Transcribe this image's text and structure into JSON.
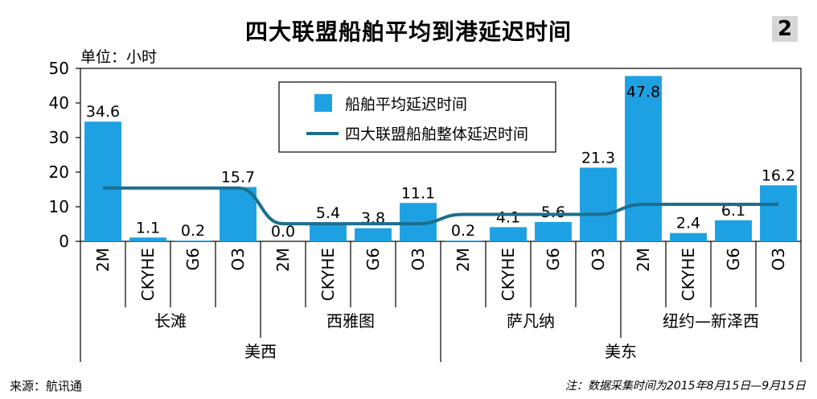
{
  "header": {
    "title": "四大联盟船舶平均到港延迟时间",
    "badge": "2",
    "unit": "单位：小时"
  },
  "footer": {
    "source": "来源：航讯通",
    "note": "注：数据采集时间为2015年8月15日—9月15日"
  },
  "colors": {
    "bar": "#1ea1e3",
    "line": "#1b6e8e",
    "axis": "#000000"
  },
  "chart_data": {
    "type": "bar",
    "ylim": [
      0,
      50
    ],
    "yticks": [
      0,
      10,
      20,
      30,
      40,
      50
    ],
    "categories": [
      "2M",
      "CKYHE",
      "G6",
      "O3",
      "2M",
      "CKYHE",
      "G6",
      "O3",
      "2M",
      "CKYHE",
      "G6",
      "O3",
      "2M",
      "CKYHE",
      "G6",
      "O3"
    ],
    "ports": [
      "长滩",
      "西雅图",
      "萨凡纳",
      "纽约—新泽西"
    ],
    "regions": [
      "美西",
      "美东"
    ],
    "series": [
      {
        "name": "船舶平均延迟时间",
        "type": "bar",
        "values": [
          34.6,
          1.1,
          0.2,
          15.7,
          0.0,
          5.4,
          3.8,
          11.1,
          0.2,
          4.1,
          5.6,
          21.3,
          47.8,
          2.4,
          6.1,
          16.2
        ]
      },
      {
        "name": "四大联盟船舶整体延迟时间",
        "type": "line",
        "values": [
          15.4,
          15.4,
          15.4,
          15.4,
          5.1,
          5.1,
          5.1,
          5.1,
          7.8,
          7.8,
          7.8,
          7.8,
          10.7,
          10.7,
          10.7,
          10.7
        ]
      }
    ],
    "legend_position": "top-center"
  }
}
